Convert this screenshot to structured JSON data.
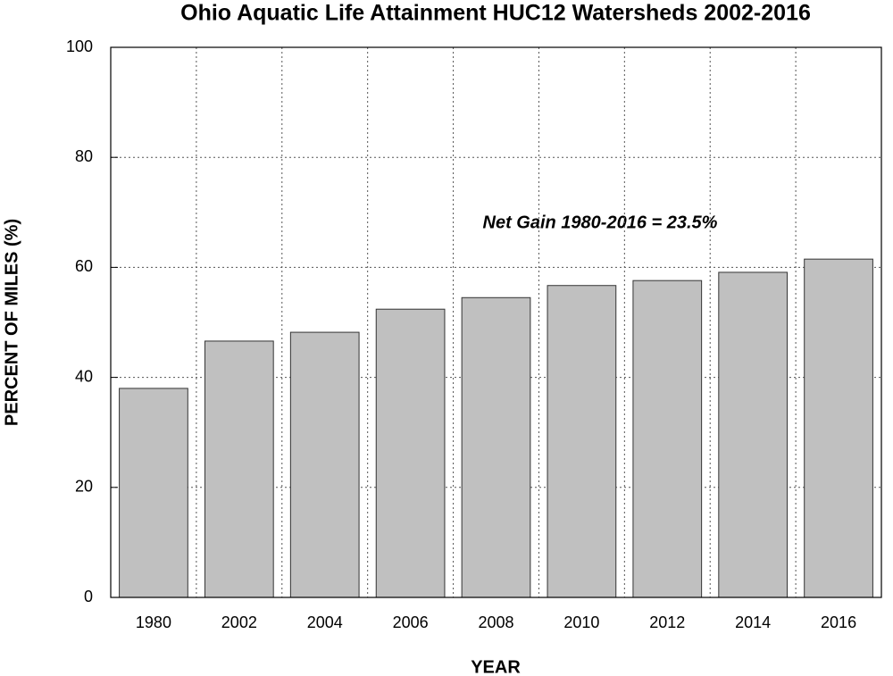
{
  "chart_data": {
    "type": "bar",
    "title": "Ohio Aquatic Life Attainment HUC12 Watersheds 2002-2016",
    "x_label": "YEAR",
    "y_label": "PERCENT OF MILES (%)",
    "annotation": "Net Gain 1980-2016 = 23.5%",
    "categories": [
      "1980",
      "2002",
      "2004",
      "2006",
      "2008",
      "2010",
      "2012",
      "2014",
      "2016"
    ],
    "values": [
      38.0,
      46.6,
      48.2,
      52.4,
      54.5,
      56.7,
      57.6,
      59.1,
      61.5
    ],
    "color": "#c0c0c0",
    "ylim": [
      0,
      100
    ],
    "yticks": [
      0,
      20,
      40,
      60,
      80,
      100
    ],
    "grid": true
  }
}
